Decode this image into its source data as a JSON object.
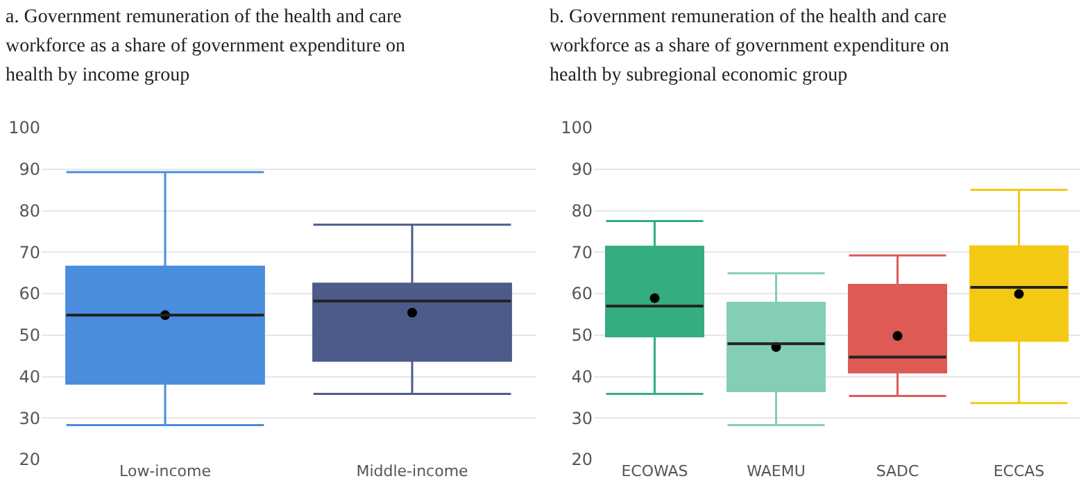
{
  "chart_data": [
    {
      "type": "box",
      "title": "a. Government remuneration of the health and care workforce as a share of government expenditure on health by income group",
      "categories": [
        "Low-income",
        "Middle-income"
      ],
      "colors": [
        "#4a8ddc",
        "#4c5b8a"
      ],
      "boxes": [
        {
          "low": 28.3,
          "q1": 38.3,
          "median": 54.8,
          "q3": 66.5,
          "high": 89.3,
          "mean": 54.8
        },
        {
          "low": 35.8,
          "q1": 43.8,
          "median": 58.2,
          "q3": 62.4,
          "high": 76.6,
          "mean": 55.4
        }
      ],
      "ylim": [
        20,
        100
      ],
      "yticks": [
        20,
        30,
        40,
        50,
        60,
        70,
        80,
        90,
        100
      ],
      "grid": "y"
    },
    {
      "type": "box",
      "title": "b. Government remuneration of the health and care workforce as a share of government expenditure on health by subregional economic group",
      "categories": [
        "ECOWAS",
        "WAEMU",
        "SADC",
        "ECCAS"
      ],
      "colors": [
        "#34ad80",
        "#84cfb3",
        "#dd5a55",
        "#f3c913"
      ],
      "boxes": [
        {
          "low": 35.8,
          "q1": 49.7,
          "median": 57.0,
          "q3": 71.3,
          "high": 77.5,
          "mean": 58.9
        },
        {
          "low": 28.3,
          "q1": 36.5,
          "median": 47.9,
          "q3": 57.8,
          "high": 64.9,
          "mean": 47.1
        },
        {
          "low": 35.3,
          "q1": 41.0,
          "median": 44.7,
          "q3": 62.1,
          "high": 69.2,
          "mean": 49.8
        },
        {
          "low": 33.6,
          "q1": 48.6,
          "median": 61.5,
          "q3": 71.4,
          "high": 85.0,
          "mean": 59.9
        }
      ],
      "ylim": [
        20,
        100
      ],
      "yticks": [
        20,
        30,
        40,
        50,
        60,
        70,
        80,
        90,
        100
      ],
      "grid": "y"
    }
  ]
}
